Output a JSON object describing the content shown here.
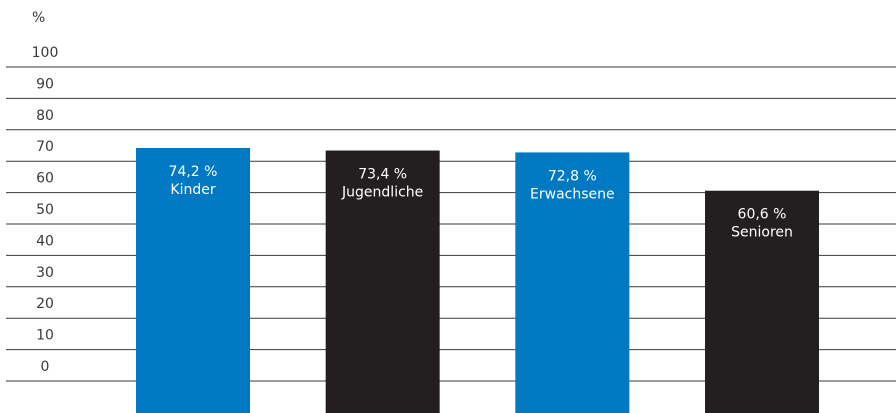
{
  "chart_data": {
    "type": "bar",
    "unit_label": "%",
    "ylim": [
      0,
      100
    ],
    "yticks": [
      0,
      10,
      20,
      30,
      40,
      50,
      60,
      70,
      80,
      90,
      100
    ],
    "grid": true,
    "categories": [
      "Kinder",
      "Jugendliche",
      "Erwachsene",
      "Senioren"
    ],
    "values": [
      74.2,
      73.4,
      72.8,
      60.6
    ],
    "value_labels": [
      "74,2 %",
      "73,4 %",
      "72,8 %",
      "60,6 %"
    ],
    "colors": [
      "#0079c2",
      "#231f20",
      "#0079c2",
      "#231f20"
    ],
    "text_color": "#ffffff",
    "axis_color": "#3a3a3a"
  }
}
